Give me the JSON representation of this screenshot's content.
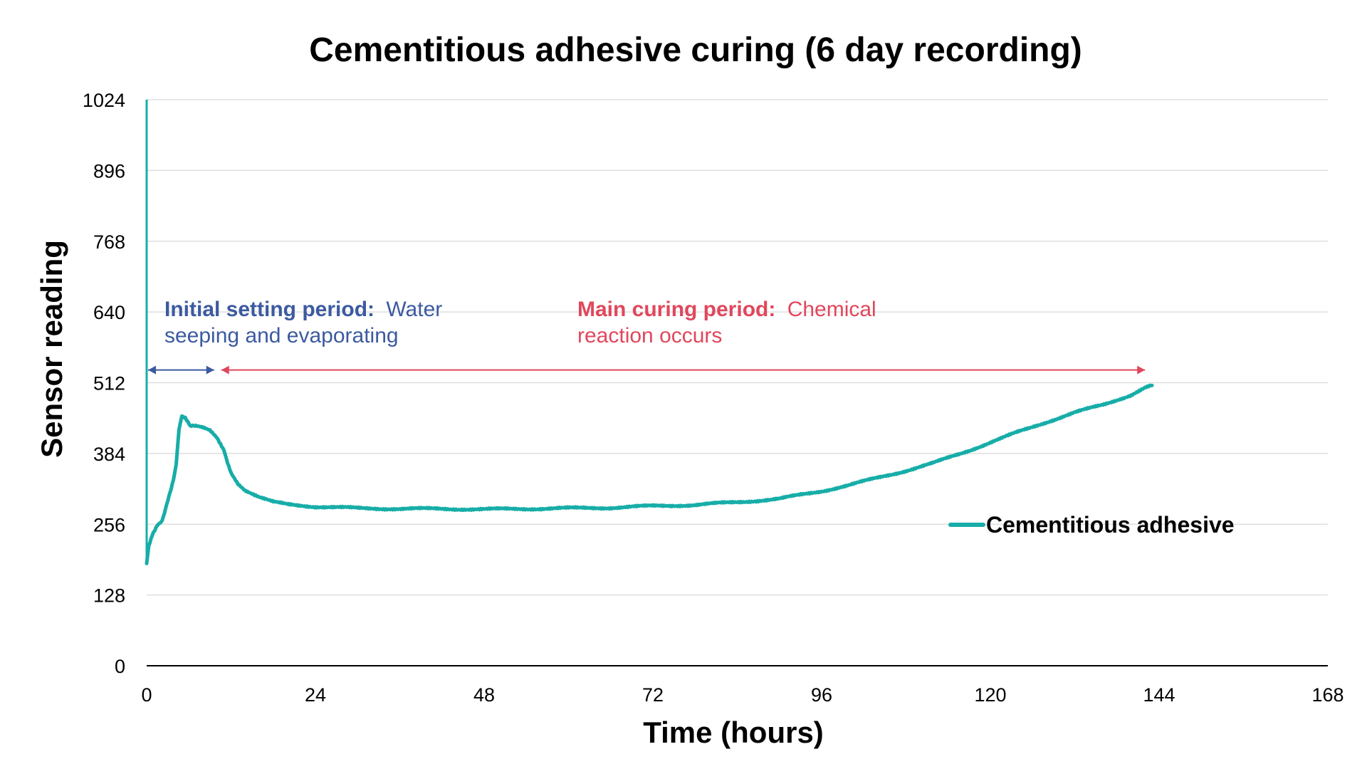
{
  "colors": {
    "series": "#17ADA8",
    "initial": "#3C5AA0",
    "main": "#E0475C",
    "grid": "#D9D9D9",
    "axis": "#000000"
  },
  "chart_data": {
    "type": "line",
    "title": "Cementitious adhesive curing (6 day recording)",
    "xlabel": "Time (hours)",
    "ylabel": "Sensor reading",
    "xlim": [
      0,
      168
    ],
    "ylim": [
      0,
      1024
    ],
    "xticks": [
      0,
      24,
      48,
      72,
      96,
      120,
      144,
      168
    ],
    "yticks": [
      0,
      128,
      256,
      384,
      512,
      640,
      768,
      896,
      1024
    ],
    "xtick_labels": [
      "0",
      "24",
      "48",
      "72",
      "96",
      "120",
      "144",
      "168"
    ],
    "ytick_labels": [
      "0",
      "128",
      "256",
      "384",
      "512",
      "640",
      "768",
      "896",
      "1024"
    ],
    "grid": true,
    "legend_position": "right",
    "series": [
      {
        "name": "Cementitious adhesive",
        "x": [
          0,
          0.3,
          0.8,
          1.5,
          2.2,
          3,
          3.8,
          4.2,
          4.6,
          5.0,
          5.5,
          6.2,
          7,
          8,
          9,
          10,
          11,
          11.5,
          12,
          12.5,
          13,
          14,
          16,
          18,
          20,
          24,
          30,
          36,
          42,
          48,
          54,
          60,
          66,
          72,
          78,
          84,
          90,
          96,
          100,
          104,
          108,
          112,
          116,
          120,
          124,
          128,
          132,
          136,
          140,
          142,
          143
        ],
        "y": [
          185,
          218,
          238,
          255,
          262,
          300,
          335,
          365,
          425,
          452,
          448,
          435,
          433,
          430,
          425,
          412,
          390,
          368,
          350,
          340,
          330,
          318,
          305,
          296,
          292,
          288,
          285,
          284,
          284,
          283,
          284,
          285,
          286,
          289,
          291,
          296,
          302,
          316,
          327,
          340,
          353,
          367,
          385,
          404,
          423,
          441,
          458,
          472,
          490,
          503,
          507
        ]
      }
    ],
    "annotations": [
      {
        "bold": "Initial setting period:",
        "line1": "Water",
        "line2": "seeping and evaporating",
        "arrow_start": 0,
        "arrow_end": 10,
        "arrow_y": 535
      },
      {
        "bold": "Main curing period:",
        "line1": "Chemical",
        "line2": "reaction occurs",
        "arrow_start": 10,
        "arrow_end": 142,
        "arrow_y": 535
      }
    ]
  }
}
